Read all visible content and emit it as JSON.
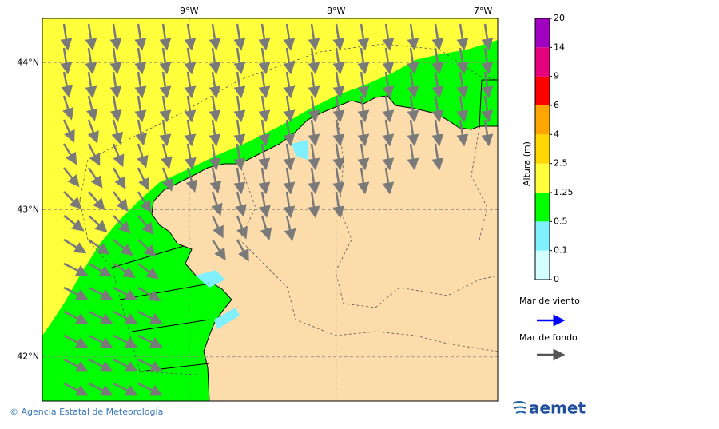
{
  "map": {
    "lonlim": [
      -10,
      -6.9
    ],
    "latlim": [
      41.7,
      44.3
    ],
    "lon_ticks": [
      {
        "value": -9,
        "label": "9°W"
      },
      {
        "value": -8,
        "label": "8°W"
      },
      {
        "value": -7,
        "label": "7°W"
      }
    ],
    "lat_ticks": [
      {
        "value": 44,
        "label": "44°N"
      },
      {
        "value": 43,
        "label": "43°N"
      },
      {
        "value": 42,
        "label": "42°N"
      }
    ],
    "grid": true
  },
  "colorbar": {
    "title": "Altura (m)",
    "levels": [
      0,
      0.1,
      0.5,
      1.25,
      2.5,
      4,
      6,
      9,
      14,
      20
    ],
    "colors": [
      "#d4ffff",
      "#80f0ff",
      "#00ff00",
      "#ffff3c",
      "#ffd700",
      "#ffa500",
      "#ff0000",
      "#e6007e",
      "#a000c0"
    ]
  },
  "legend": [
    {
      "label": "Mar de viento",
      "color": "#0000ff"
    },
    {
      "label": "Mar de fondo",
      "color": "#555555"
    }
  ],
  "footer": {
    "credit": "© Agencia Estatal de Meteorología",
    "logo": "aemet"
  }
}
